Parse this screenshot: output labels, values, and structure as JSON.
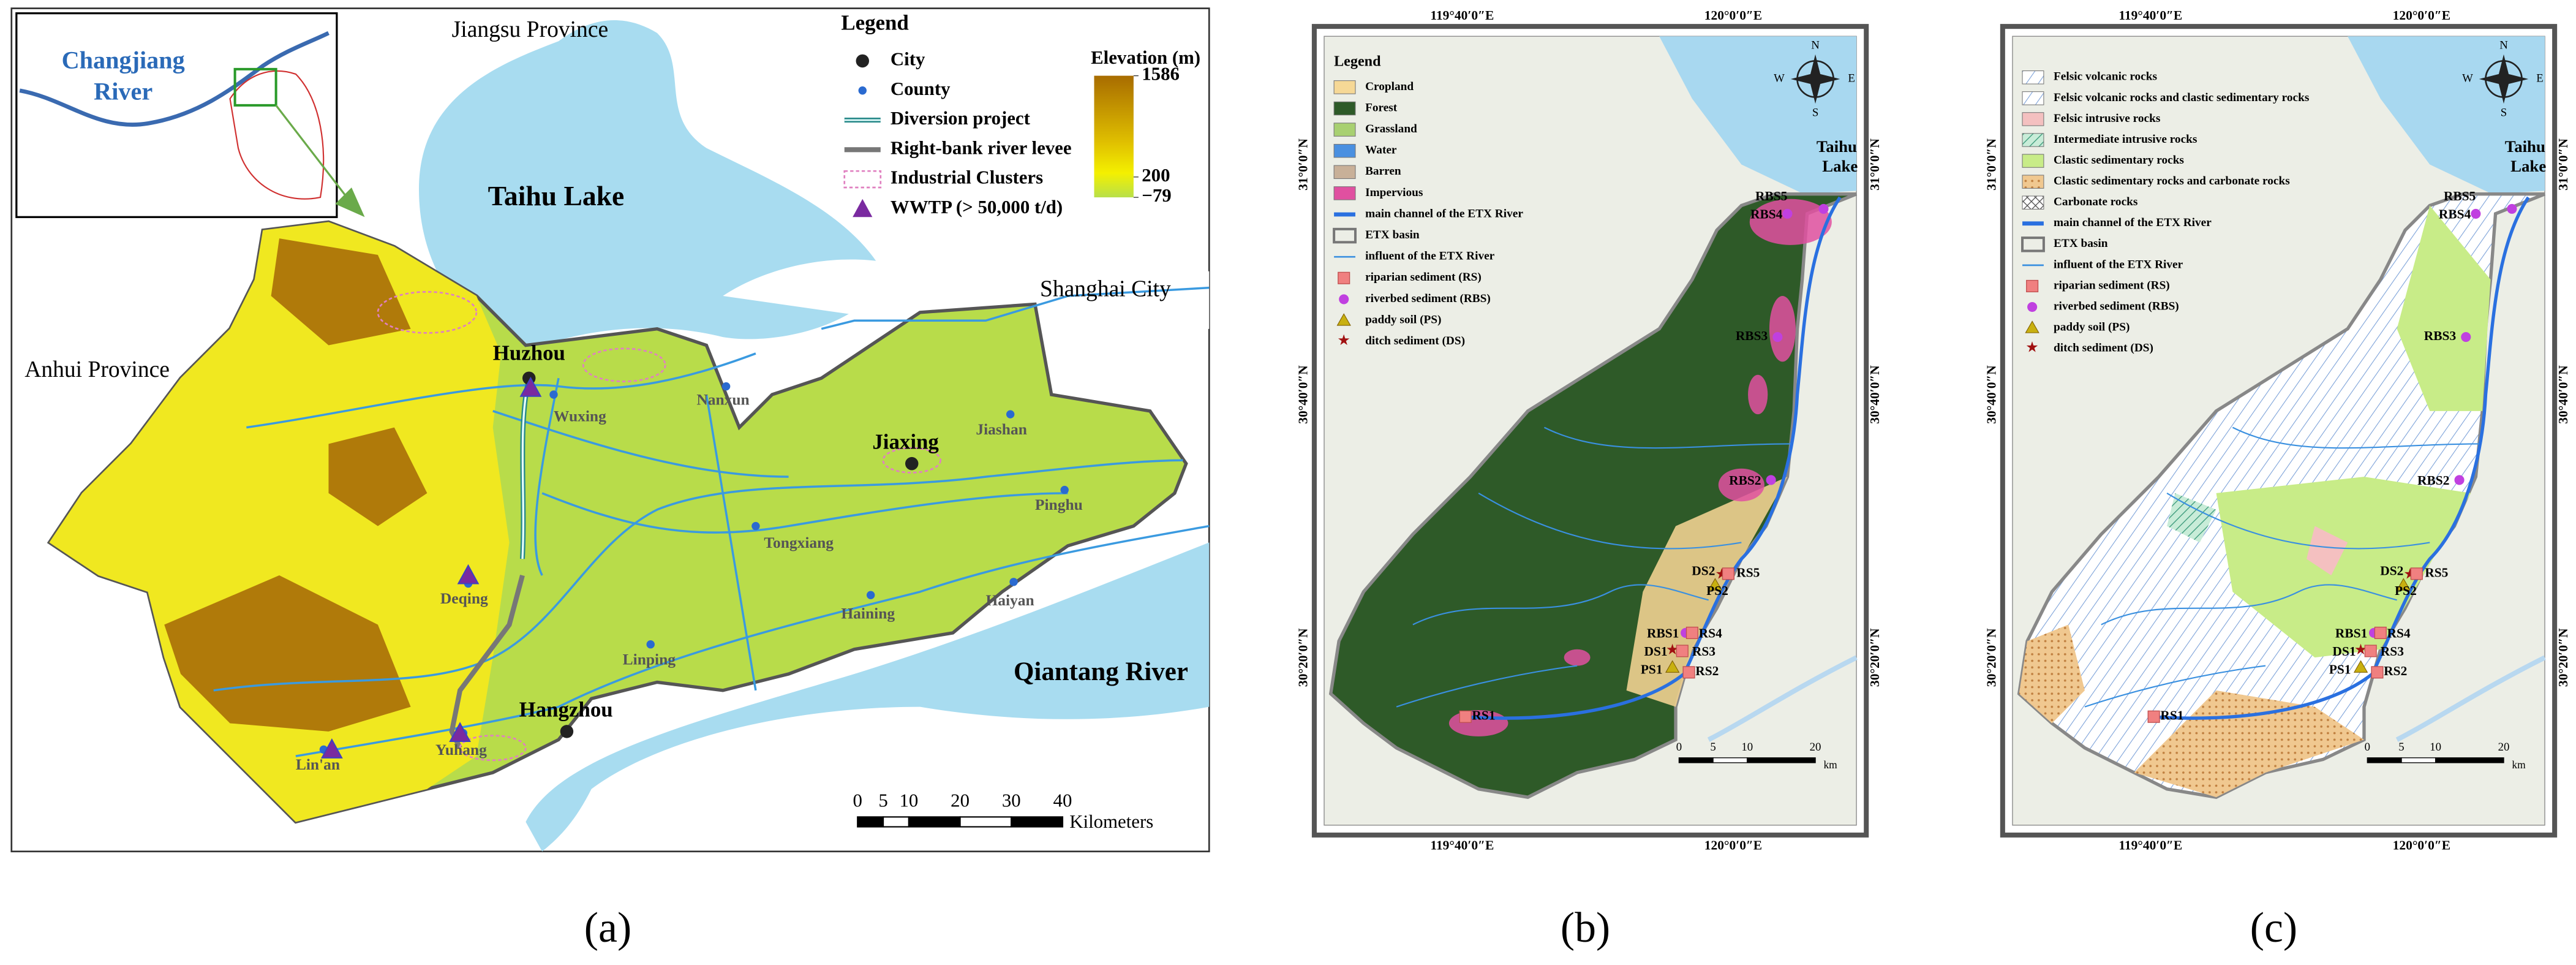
{
  "panel_a": {
    "inset": {
      "labels": [
        "Changjiang",
        "River"
      ]
    },
    "regions": [
      "Jiangsu Province",
      "Anhui Province",
      "Shanghai City"
    ],
    "water": [
      "Taihu Lake",
      "Qiantang River"
    ],
    "cities": [
      "Huzhou",
      "Jiaxing",
      "Hangzhou"
    ],
    "counties": [
      "Nanxun",
      "Wuxing",
      "Jiashan",
      "Pinghu",
      "Tongxiang",
      "Haining",
      "Haiyan",
      "Deqing",
      "Linping",
      "Yuhang",
      "Lin'an"
    ],
    "legend": {
      "title": "Legend",
      "items": [
        "City",
        "County",
        "Diversion project",
        "Right-bank river levee",
        "Industrial Clusters",
        "WWTP (> 50,000 t/d)"
      ]
    },
    "elevation": {
      "title": "Elevation (m)",
      "ticks": [
        1586,
        200,
        {
          "value": -79,
          "label": "−79"
        }
      ]
    },
    "scale": {
      "ticks": [
        0,
        5,
        10,
        20,
        30,
        40
      ],
      "unit": "Kilometers"
    },
    "label": "(a)"
  },
  "panel_b": {
    "lon": [
      "119°40′0″E",
      "120°0′0″E"
    ],
    "lat": [
      "31°0′0″N",
      "30°40′0″N",
      "30°20′0″N"
    ],
    "legend": {
      "title": "Legend",
      "items": [
        "Cropland",
        "Forest",
        "Grassland",
        "Water",
        "Barren",
        "Impervious",
        "main channel of the ETX River",
        "ETX basin",
        "influent of the ETX River",
        "riparian sediment (RS)",
        "riverbed sediment (RBS)",
        "paddy soil (PS)",
        "ditch sediment (DS)"
      ]
    },
    "lake": [
      "Taihu",
      "Lake"
    ],
    "compass": [
      "N",
      "S",
      "W",
      "E"
    ],
    "samples": [
      "RBS5",
      "RBS4",
      "RBS3",
      "RBS2",
      "DS2",
      "RS5",
      "PS2",
      "RBS1",
      "RS4",
      "DS1",
      "RS3",
      "PS1",
      "RS2",
      "RS1"
    ],
    "scale": {
      "ticks": [
        0,
        5,
        10,
        20
      ],
      "unit": "km"
    },
    "label": "(b)"
  },
  "panel_c": {
    "lon": [
      "119°40′0″E",
      "120°0′0″E"
    ],
    "lat": [
      "31°0′0″N",
      "30°40′0″N",
      "30°20′0″N"
    ],
    "legend": {
      "items": [
        "Felsic volcanic rocks",
        "Felsic volcanic rocks and clastic sedimentary rocks",
        "Felsic intrusive rocks",
        "Intermediate intrusive rocks",
        "Clastic sedimentary rocks",
        "Clastic sedimentary rocks and carbonate rocks",
        "Carbonate rocks",
        "main channel of the ETX River",
        "ETX basin",
        "influent of the ETX River",
        "riparian sediment (RS)",
        "riverbed sediment (RBS)",
        "paddy soil (PS)",
        "ditch sediment (DS)"
      ]
    },
    "lake": [
      "Taihu",
      "Lake"
    ],
    "compass": [
      "N",
      "S",
      "W",
      "E"
    ],
    "samples": [
      "RBS5",
      "RBS4",
      "RBS3",
      "RBS2",
      "DS2",
      "RS5",
      "PS2",
      "RBS1",
      "RS4",
      "DS1",
      "RS3",
      "PS1",
      "RS2",
      "RS1"
    ],
    "scale": {
      "ticks": [
        0,
        5,
        10,
        20
      ],
      "unit": "km"
    },
    "label": "(c)"
  }
}
